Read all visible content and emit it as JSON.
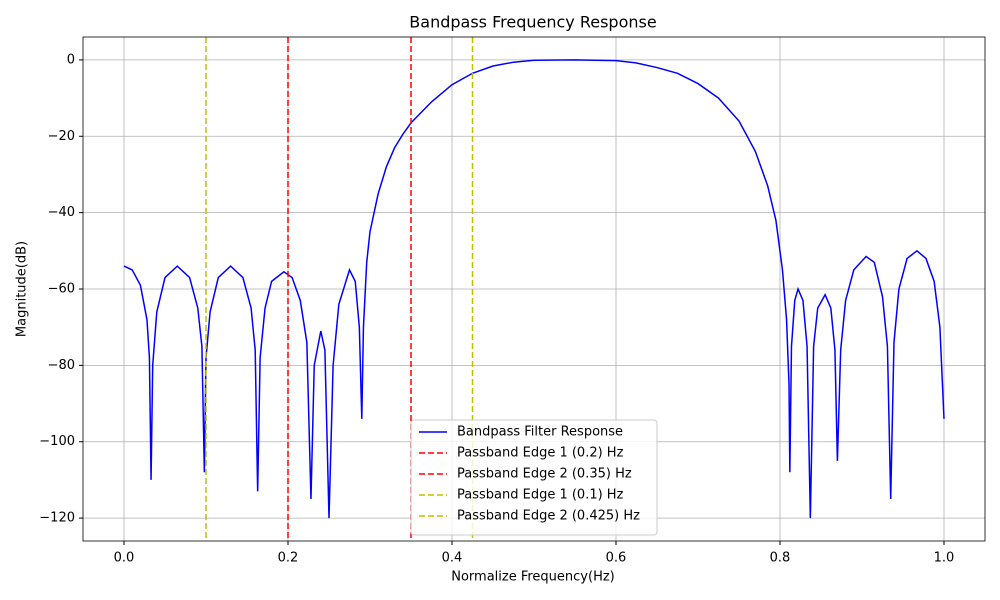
{
  "chart_data": {
    "type": "line",
    "title": "Bandpass Frequency Response",
    "x_label": "Normalize Frequency(Hz)",
    "y_label": "Magnitude(dB)",
    "xlim": [
      -0.05,
      1.05
    ],
    "ylim": [
      -126,
      6
    ],
    "xticks": [
      {
        "value": 0,
        "label": "0.0"
      },
      0.2,
      0.4,
      0.6,
      0.8,
      {
        "value": 1,
        "label": "1.0"
      }
    ],
    "yticks": [
      {
        "value": -120,
        "label": "−120"
      },
      {
        "value": -100,
        "label": "−100"
      },
      {
        "value": -80,
        "label": "−80"
      },
      {
        "value": -60,
        "label": "−60"
      },
      {
        "value": -40,
        "label": "−40"
      },
      {
        "value": -20,
        "label": "−20"
      },
      0
    ],
    "grid": true,
    "legend": "lower center",
    "series": [
      {
        "name": "Bandpass Filter Response",
        "color": "#0000ff",
        "x": [
          0,
          0.01,
          0.02,
          0.028,
          0.031,
          0.033,
          0.035,
          0.04,
          0.05,
          0.065,
          0.08,
          0.09,
          0.095,
          0.098,
          0.1,
          0.105,
          0.115,
          0.13,
          0.145,
          0.155,
          0.16,
          0.163,
          0.166,
          0.172,
          0.18,
          0.195,
          0.205,
          0.215,
          0.223,
          0.228,
          0.232,
          0.24,
          0.245,
          0.25,
          0.255,
          0.262,
          0.275,
          0.282,
          0.287,
          0.29,
          0.292,
          0.296,
          0.3,
          0.31,
          0.32,
          0.33,
          0.34,
          0.35,
          0.375,
          0.4,
          0.425,
          0.45,
          0.475,
          0.5,
          0.55,
          0.6,
          0.625,
          0.65,
          0.675,
          0.7,
          0.725,
          0.75,
          0.77,
          0.785,
          0.795,
          0.803,
          0.808,
          0.811,
          0.812,
          0.814,
          0.818,
          0.822,
          0.828,
          0.833,
          0.837,
          0.841,
          0.846,
          0.855,
          0.862,
          0.867,
          0.87,
          0.874,
          0.88,
          0.89,
          0.905,
          0.915,
          0.925,
          0.931,
          0.935,
          0.939,
          0.945,
          0.955,
          0.967,
          0.978,
          0.988,
          0.995,
          1
        ],
        "values": [
          -54,
          -55,
          -59,
          -68,
          -78,
          -110,
          -80,
          -66,
          -57,
          -54,
          -57,
          -65,
          -75,
          -108,
          -78,
          -66,
          -57,
          -54,
          -57,
          -65,
          -76,
          -113,
          -78,
          -65,
          -58,
          -55.5,
          -57,
          -63,
          -74,
          -115,
          -80,
          -71,
          -76,
          -120,
          -80,
          -64,
          -55,
          -58,
          -70,
          -94,
          -70,
          -53,
          -45,
          -35,
          -28,
          -23,
          -19.5,
          -16.5,
          -11,
          -6.5,
          -3.5,
          -1.6,
          -0.6,
          -0.1,
          0,
          -0.2,
          -0.8,
          -2,
          -3.5,
          -6.2,
          -10,
          -16,
          -24,
          -33,
          -42,
          -55,
          -68,
          -85,
          -108,
          -75,
          -63,
          -60,
          -63,
          -75,
          -120,
          -75,
          -65,
          -61.5,
          -65,
          -76,
          -105,
          -76,
          -63,
          -55,
          -51.5,
          -53,
          -62,
          -75,
          -115,
          -74,
          -60,
          -52,
          -50,
          -52,
          -58,
          -70,
          -94
        ]
      }
    ],
    "vlines": [
      {
        "name": "Passband Edge 1 (0.2) Hz",
        "color": "#ff0000",
        "x": 0.2
      },
      {
        "name": "Passband Edge 2 (0.35) Hz",
        "color": "#ff0000",
        "x": 0.35
      },
      {
        "name": "Passband Edge 1 (0.1) Hz",
        "color": "#bfbf00",
        "x": 0.1
      },
      {
        "name": "Passband Edge 2 (0.425) Hz",
        "color": "#bfbf00",
        "x": 0.425
      }
    ]
  }
}
